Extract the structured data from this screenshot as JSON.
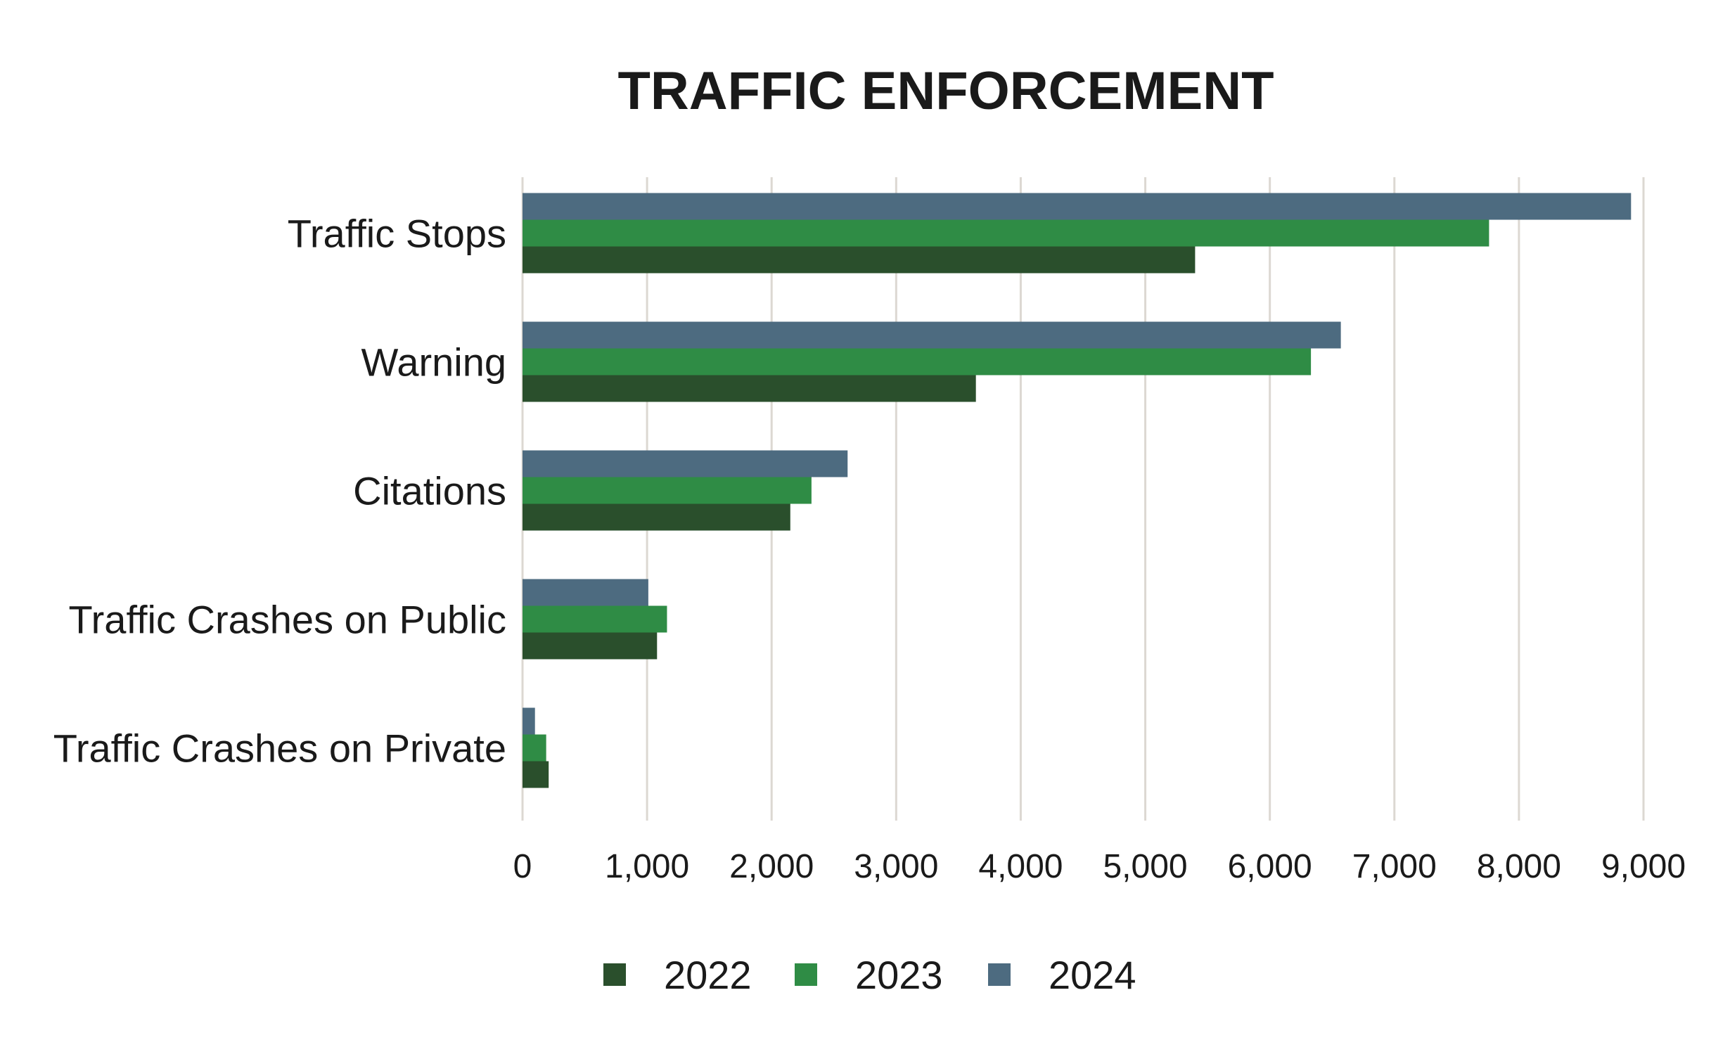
{
  "chart_data": {
    "type": "bar",
    "orientation": "horizontal",
    "title": "TRAFFIC ENFORCEMENT",
    "categories": [
      "Traffic Stops",
      "Warning",
      "Citations",
      "Traffic Crashes on Public",
      "Traffic Crashes on Private"
    ],
    "series": [
      {
        "name": "2022",
        "color": "#2a4f2c",
        "values": [
          5400,
          3640,
          2150,
          1080,
          210
        ]
      },
      {
        "name": "2023",
        "color": "#2f8c45",
        "values": [
          7760,
          6330,
          2320,
          1160,
          190
        ]
      },
      {
        "name": "2024",
        "color": "#4d6b80",
        "values": [
          8900,
          6570,
          2610,
          1010,
          100
        ]
      }
    ],
    "xlim": [
      0,
      9000
    ],
    "xticks": [
      "0",
      "1,000",
      "2,000",
      "3,000",
      "4,000",
      "5,000",
      "6,000",
      "7,000",
      "8,000",
      "9,000"
    ],
    "grid": "vertical",
    "legend": "bottom",
    "gridColor": "#dcd8d2"
  }
}
